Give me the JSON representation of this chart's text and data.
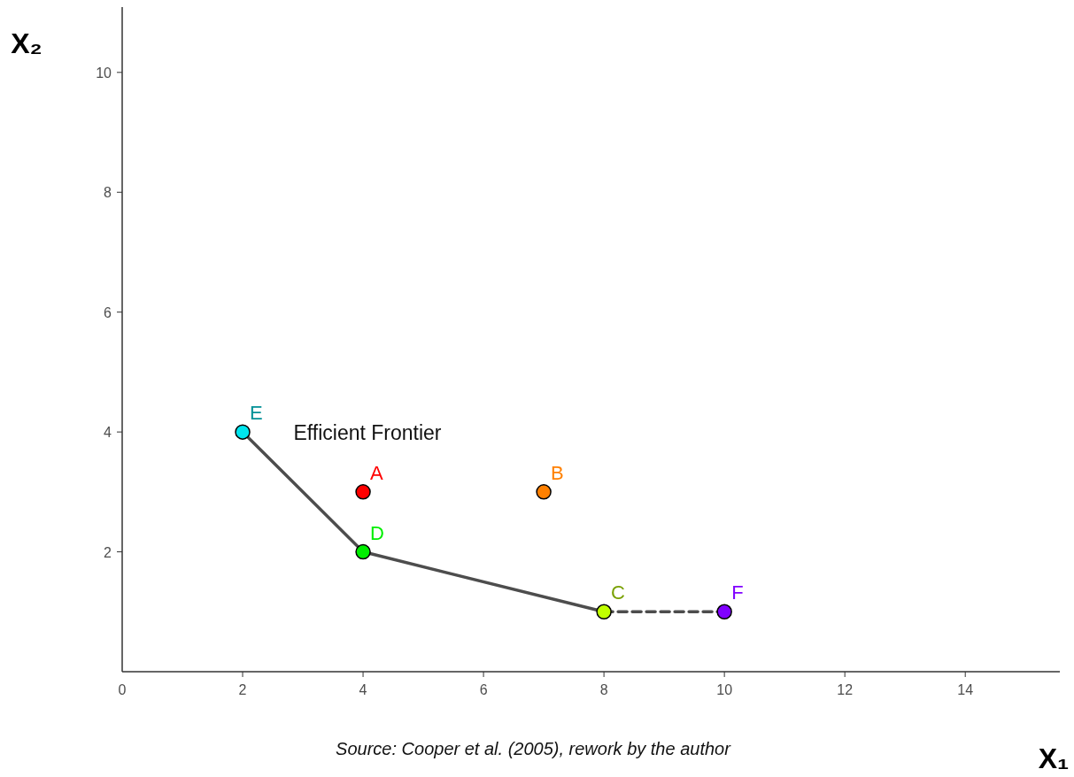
{
  "chart_data": {
    "type": "scatter",
    "xlabel": "X₁",
    "ylabel": "X₂",
    "xlim": [
      0,
      15.57
    ],
    "ylim": [
      0,
      11.09
    ],
    "xticks": [
      0,
      2,
      4,
      6,
      8,
      10,
      12,
      14
    ],
    "yticks": [
      2,
      4,
      6,
      8,
      10
    ],
    "grid": false,
    "series": [
      {
        "type": "line",
        "color": "#4d4d4d",
        "x": [
          2,
          4,
          8
        ],
        "values": [
          4,
          2,
          1
        ],
        "line_style": "solid",
        "marker": "none"
      },
      {
        "type": "line",
        "color": "#4d4d4d",
        "x": [
          8,
          10
        ],
        "values": [
          1,
          1
        ],
        "line_style": "dashed",
        "marker": "none"
      },
      {
        "name": "E",
        "color": "#00e5ee",
        "x": [
          2
        ],
        "values": [
          4
        ],
        "marker": "circle"
      },
      {
        "name": "A",
        "color": "#ff0000",
        "x": [
          4
        ],
        "values": [
          3
        ],
        "marker": "circle"
      },
      {
        "name": "D",
        "color": "#00ee00",
        "x": [
          4
        ],
        "values": [
          2
        ],
        "marker": "circle"
      },
      {
        "name": "B",
        "color": "#ff8000",
        "x": [
          7
        ],
        "values": [
          3
        ],
        "marker": "circle"
      },
      {
        "name": "C",
        "color": "#c0ff00",
        "x": [
          8
        ],
        "values": [
          1
        ],
        "marker": "circle"
      },
      {
        "name": "F",
        "color": "#8000ff",
        "x": [
          10
        ],
        "values": [
          1
        ],
        "marker": "circle"
      }
    ],
    "annotations": [
      "Efficient Frontier",
      "Source: Cooper et al. (2005), rework by the author"
    ]
  }
}
